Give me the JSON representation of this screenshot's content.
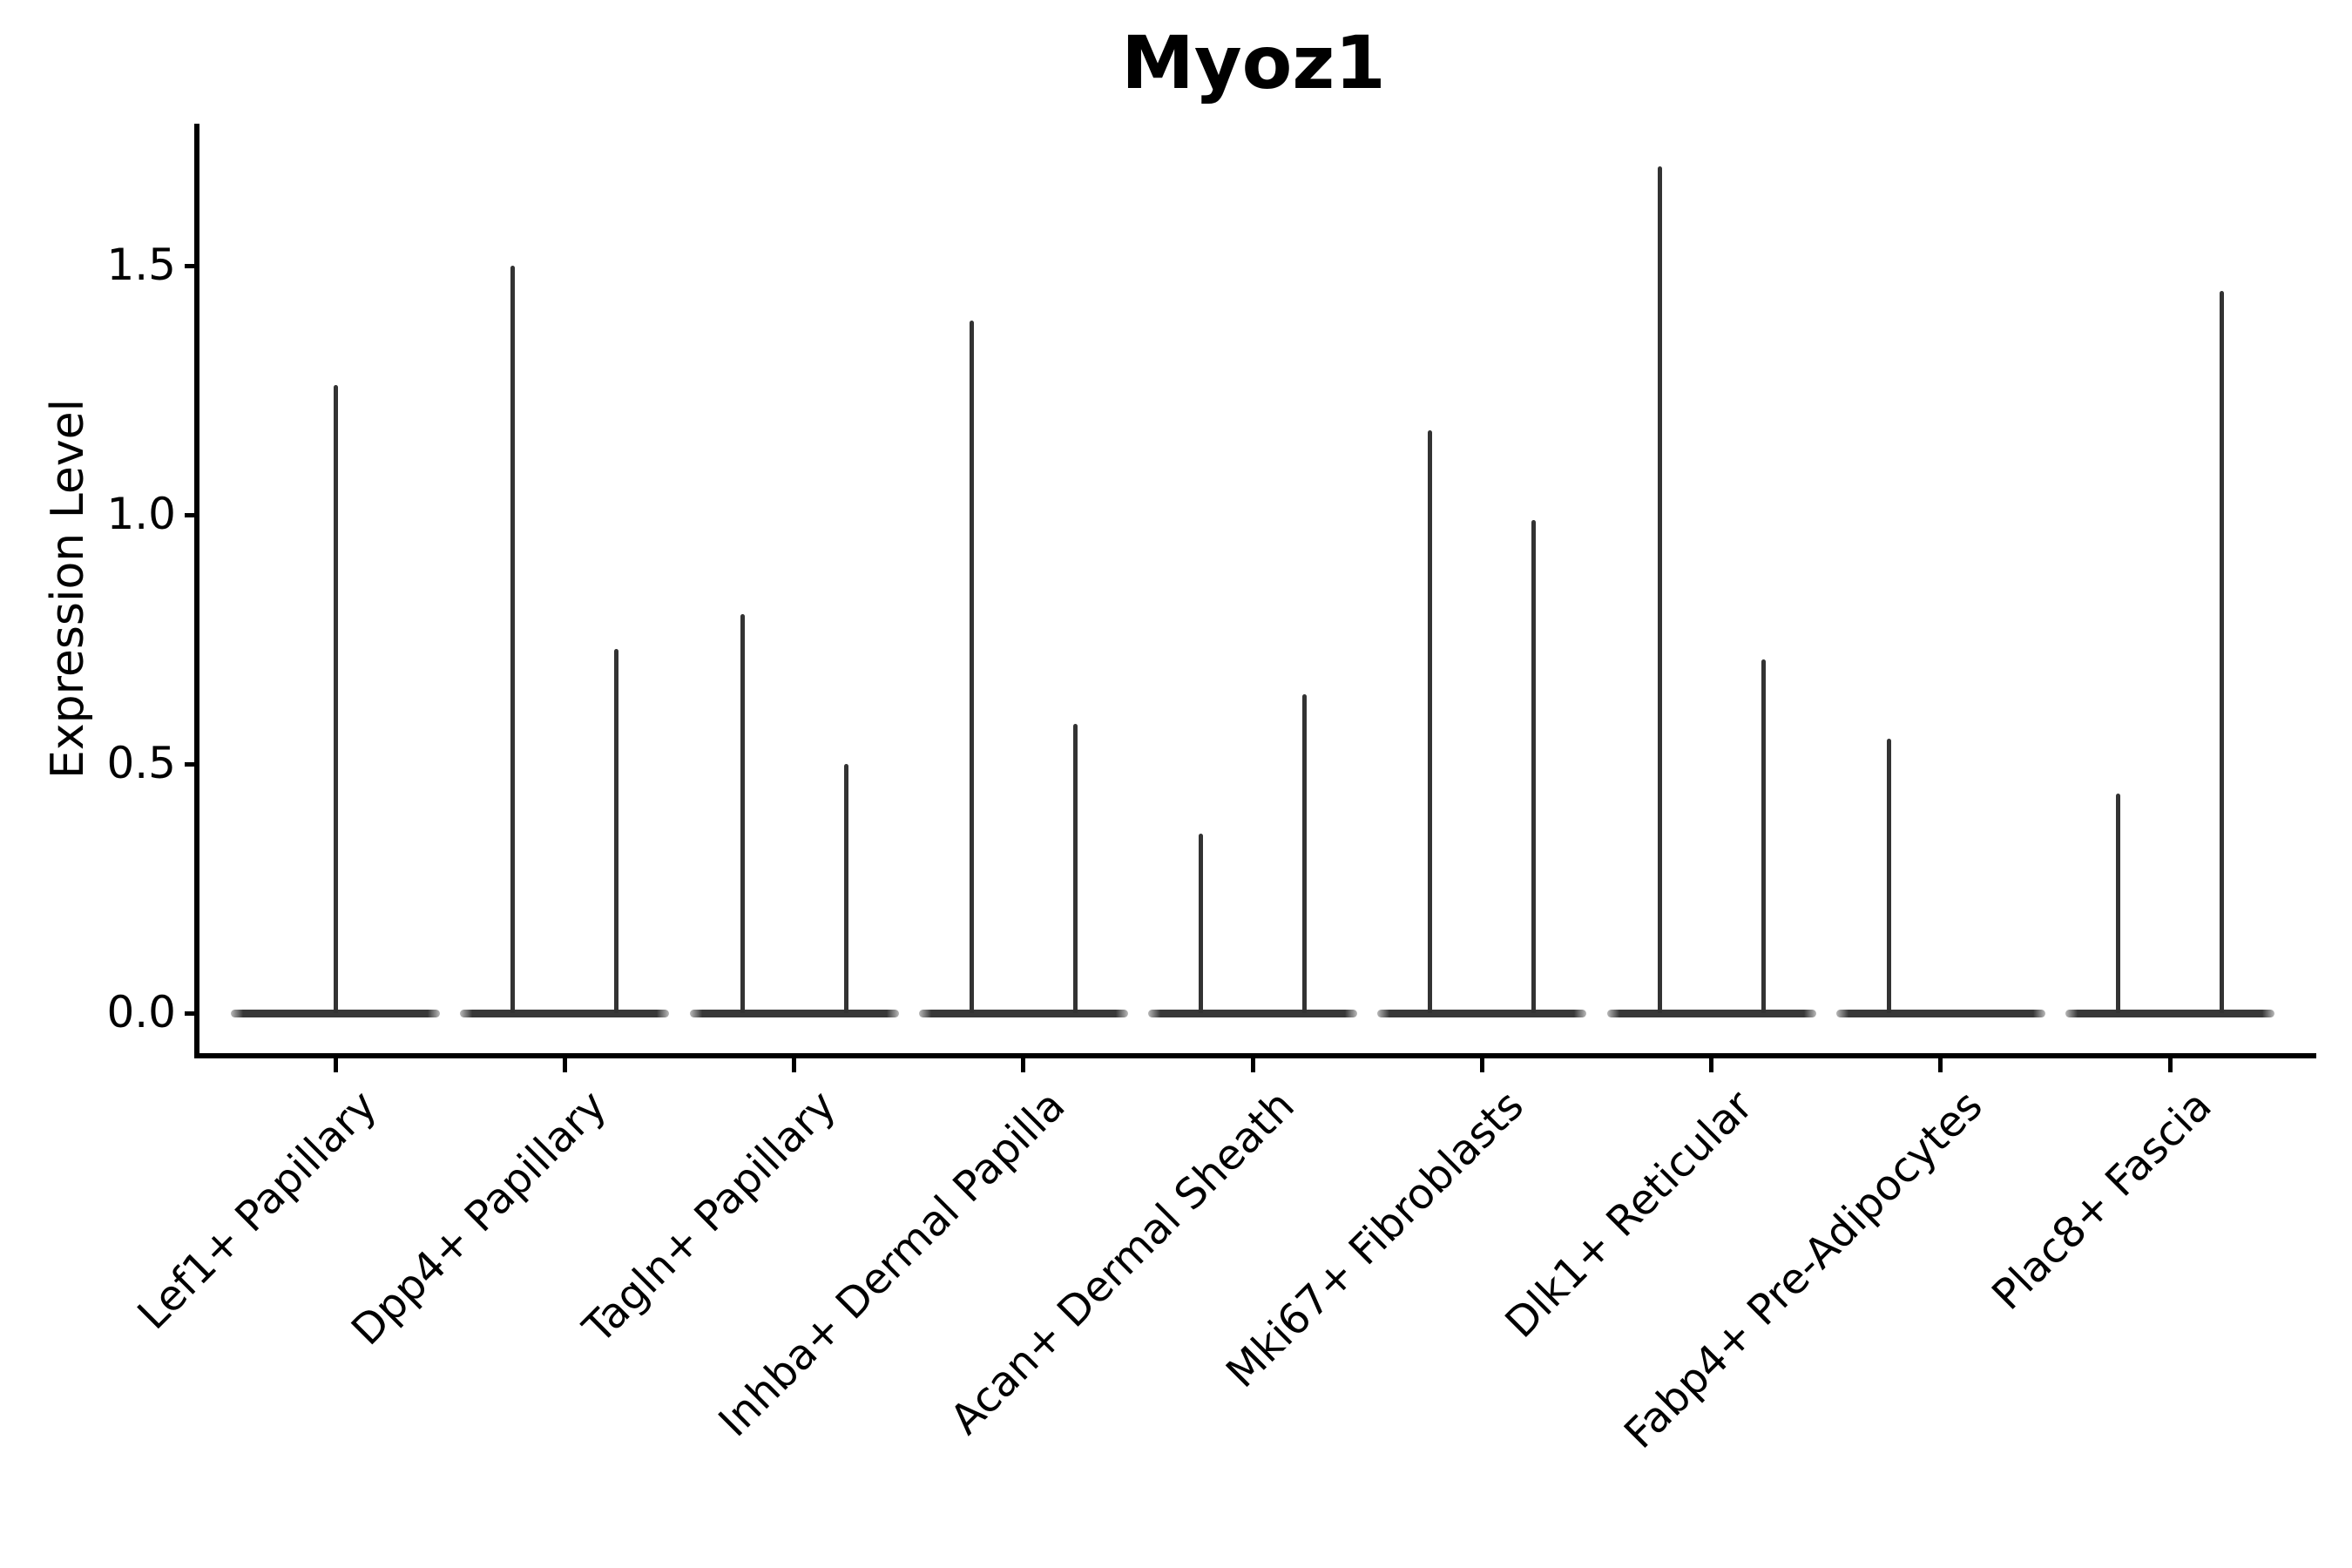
{
  "title": "Myoz1",
  "axes": {
    "ylabel": "Expression Level",
    "ytick_labels": [
      "0.0",
      "0.5",
      "1.0",
      "1.5"
    ]
  },
  "style": {
    "background": "#ffffff",
    "axis_color": "#000000",
    "violin_edge_color": "#333333",
    "violin_baseline_color": "#383838"
  },
  "chart_data": {
    "type": "violin",
    "title": "Myoz1",
    "xlabel": "",
    "ylabel": "Expression Level",
    "yticks": [
      0.0,
      0.5,
      1.0,
      1.5
    ],
    "ylim": [
      -0.08,
      1.79
    ],
    "grid": false,
    "legend": false,
    "description": "Sparse single-cell expression violin plot: each category shows a flat zero-expression base with narrow density spikes reaching the maximum expression value; most categories contain a left and right spike pair.",
    "categories": [
      "Lef1+ Papillary",
      "Dpp4+ Papillary",
      "Tagln+ Papillary",
      "Inhba+ Dermal Papilla",
      "Acan+ Dermal Sheath",
      "Mki67+ Fibroblasts",
      "Dlk1+ Reticular",
      "Fabp4+ Pre-Adipocytes",
      "Plac8+ Fascia"
    ],
    "violins": [
      {
        "category": "Lef1+ Papillary",
        "baseline_value": 0.0,
        "peaks": [
          {
            "position": "center",
            "max": 1.26
          }
        ]
      },
      {
        "category": "Dpp4+ Papillary",
        "baseline_value": 0.0,
        "peaks": [
          {
            "position": "left",
            "max": 1.5
          },
          {
            "position": "right",
            "max": 0.73
          }
        ]
      },
      {
        "category": "Tagln+ Papillary",
        "baseline_value": 0.0,
        "peaks": [
          {
            "position": "left",
            "max": 0.8
          },
          {
            "position": "right",
            "max": 0.5
          }
        ]
      },
      {
        "category": "Inhba+ Dermal Papilla",
        "baseline_value": 0.0,
        "peaks": [
          {
            "position": "left",
            "max": 1.39
          },
          {
            "position": "right",
            "max": 0.58
          }
        ]
      },
      {
        "category": "Acan+ Dermal Sheath",
        "baseline_value": 0.0,
        "peaks": [
          {
            "position": "left",
            "max": 0.36
          },
          {
            "position": "right",
            "max": 0.64
          }
        ]
      },
      {
        "category": "Mki67+ Fibroblasts",
        "baseline_value": 0.0,
        "peaks": [
          {
            "position": "left",
            "max": 1.17
          },
          {
            "position": "right",
            "max": 0.99
          }
        ]
      },
      {
        "category": "Dlk1+ Reticular",
        "baseline_value": 0.0,
        "peaks": [
          {
            "position": "left",
            "max": 1.7
          },
          {
            "position": "right",
            "max": 0.71
          }
        ]
      },
      {
        "category": "Fabp4+ Pre-Adipocytes",
        "baseline_value": 0.0,
        "peaks": [
          {
            "position": "left",
            "max": 0.55
          }
        ]
      },
      {
        "category": "Plac8+ Fascia",
        "baseline_value": 0.0,
        "peaks": [
          {
            "position": "left",
            "max": 0.44
          },
          {
            "position": "right",
            "max": 1.45
          }
        ]
      }
    ]
  }
}
